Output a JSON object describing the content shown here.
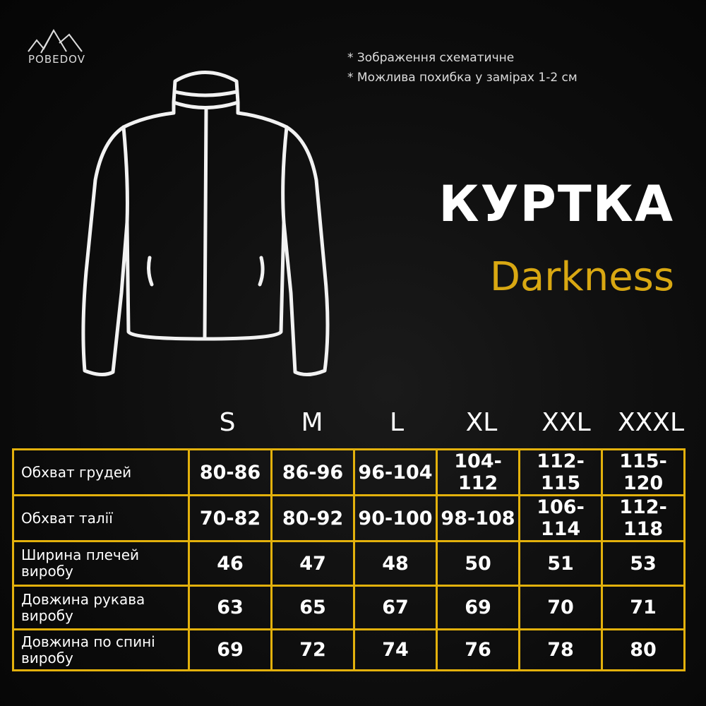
{
  "brand": {
    "logo_text": "POBEDOV"
  },
  "notes": [
    "* Зображення схематичне",
    "* Можлива похибка у замірах 1-2 см"
  ],
  "title": "КУРТКА",
  "subtitle": "Darkness",
  "colors": {
    "accent": "#e3b10c",
    "background": "#0d0d0d",
    "text": "#ffffff"
  },
  "sizes": [
    "S",
    "M",
    "L",
    "XL",
    "XXL",
    "XXXL"
  ],
  "rows": [
    {
      "label": "Обхват грудей",
      "values": [
        "80-86",
        "86-96",
        "96-104",
        "104-112",
        "112-115",
        "115-120"
      ]
    },
    {
      "label": "Обхват талії",
      "values": [
        "70-82",
        "80-92",
        "90-100",
        "98-108",
        "106-114",
        "112-118"
      ]
    },
    {
      "label": "Ширина плечей виробу",
      "values": [
        "46",
        "47",
        "48",
        "50",
        "51",
        "53"
      ]
    },
    {
      "label": "Довжина рукава виробу",
      "values": [
        "63",
        "65",
        "67",
        "69",
        "70",
        "71"
      ]
    },
    {
      "label": "Довжина по спині виробу",
      "values": [
        "69",
        "72",
        "74",
        "76",
        "78",
        "80"
      ]
    }
  ]
}
